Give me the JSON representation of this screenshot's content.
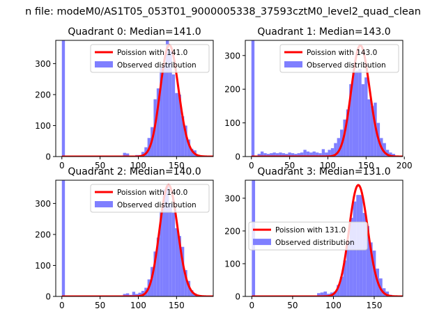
{
  "figure": {
    "suptitle": "n file: modeM0/AS1T05_053T01_9000005338_37593cztM0_level2_quad_clean",
    "colors": {
      "hist": "#7f7fff",
      "fit": "#ff0000",
      "frame": "#000000"
    }
  },
  "chart_data": [
    {
      "type": "bar+line",
      "title": "Quadrant 0: Median=141.0",
      "median": 141.0,
      "xlim": [
        -8,
        198
      ],
      "ylim": [
        0,
        375
      ],
      "xticks": [
        0,
        50,
        100,
        150
      ],
      "yticks": [
        0,
        100,
        200,
        300
      ],
      "legend": [
        "Poission with 141.0",
        "Observed distribution"
      ],
      "legend_position": "top-right",
      "fit_peak": 360,
      "hist_bin_width": 4,
      "hist": [
        [
          0,
          375
        ],
        [
          80,
          12
        ],
        [
          84,
          10
        ],
        [
          96,
          5
        ],
        [
          100,
          5
        ],
        [
          104,
          15
        ],
        [
          108,
          30
        ],
        [
          112,
          60
        ],
        [
          116,
          95
        ],
        [
          120,
          185
        ],
        [
          124,
          220
        ],
        [
          128,
          290
        ],
        [
          132,
          300
        ],
        [
          136,
          380
        ],
        [
          140,
          340
        ],
        [
          144,
          265
        ],
        [
          148,
          205
        ],
        [
          152,
          200
        ],
        [
          156,
          130
        ],
        [
          160,
          100
        ],
        [
          164,
          55
        ],
        [
          168,
          25
        ],
        [
          172,
          20
        ],
        [
          176,
          5
        ],
        [
          180,
          3
        ],
        [
          184,
          1
        ]
      ]
    },
    {
      "type": "bar+line",
      "title": "Quadrant 1: Median=143.0",
      "median": 143.0,
      "xlim": [
        -8,
        198
      ],
      "ylim": [
        0,
        345
      ],
      "xticks": [
        0,
        50,
        100,
        150,
        200
      ],
      "yticks": [
        0,
        100,
        200,
        300
      ],
      "legend": [
        "Poission with 143.0",
        "Observed distribution"
      ],
      "legend_position": "top-right",
      "fit_peak": 330,
      "hist_bin_width": 4,
      "hist": [
        [
          0,
          345
        ],
        [
          8,
          8
        ],
        [
          12,
          15
        ],
        [
          16,
          10
        ],
        [
          20,
          8
        ],
        [
          24,
          10
        ],
        [
          28,
          12
        ],
        [
          32,
          10
        ],
        [
          36,
          12
        ],
        [
          40,
          10
        ],
        [
          44,
          8
        ],
        [
          48,
          12
        ],
        [
          52,
          10
        ],
        [
          56,
          8
        ],
        [
          60,
          10
        ],
        [
          64,
          12
        ],
        [
          68,
          20
        ],
        [
          72,
          15
        ],
        [
          76,
          12
        ],
        [
          80,
          15
        ],
        [
          84,
          12
        ],
        [
          88,
          10
        ],
        [
          92,
          22
        ],
        [
          96,
          12
        ],
        [
          100,
          20
        ],
        [
          104,
          25
        ],
        [
          108,
          40
        ],
        [
          112,
          55
        ],
        [
          116,
          80
        ],
        [
          120,
          110
        ],
        [
          124,
          140
        ],
        [
          128,
          215
        ],
        [
          132,
          250
        ],
        [
          136,
          255
        ],
        [
          140,
          260
        ],
        [
          144,
          215
        ],
        [
          148,
          235
        ],
        [
          152,
          170
        ],
        [
          156,
          150
        ],
        [
          160,
          160
        ],
        [
          164,
          100
        ],
        [
          168,
          55
        ],
        [
          172,
          40
        ],
        [
          176,
          20
        ],
        [
          180,
          12
        ],
        [
          184,
          8
        ]
      ]
    },
    {
      "type": "bar+line",
      "title": "Quadrant 2: Median=140.0",
      "median": 140.0,
      "xlim": [
        -8,
        198
      ],
      "ylim": [
        0,
        375
      ],
      "xticks": [
        0,
        50,
        100,
        150
      ],
      "yticks": [
        0,
        100,
        200,
        300
      ],
      "legend": [
        "Poission with 140.0",
        "Observed distribution"
      ],
      "legend_position": "top-right",
      "fit_peak": 360,
      "hist_bin_width": 4,
      "hist": [
        [
          0,
          375
        ],
        [
          80,
          8
        ],
        [
          84,
          10
        ],
        [
          88,
          5
        ],
        [
          92,
          15
        ],
        [
          96,
          8
        ],
        [
          100,
          12
        ],
        [
          104,
          18
        ],
        [
          108,
          28
        ],
        [
          112,
          55
        ],
        [
          116,
          95
        ],
        [
          120,
          145
        ],
        [
          124,
          190
        ],
        [
          128,
          275
        ],
        [
          132,
          345
        ],
        [
          136,
          355
        ],
        [
          140,
          300
        ],
        [
          144,
          270
        ],
        [
          148,
          220
        ],
        [
          152,
          195
        ],
        [
          156,
          160
        ],
        [
          160,
          85
        ],
        [
          164,
          50
        ],
        [
          168,
          20
        ],
        [
          172,
          10
        ],
        [
          176,
          5
        ],
        [
          180,
          2
        ]
      ]
    },
    {
      "type": "bar+line",
      "title": "Quadrant 3: Median=131.0",
      "median": 131.0,
      "xlim": [
        -8,
        185
      ],
      "ylim": [
        0,
        355
      ],
      "xticks": [
        0,
        50,
        100,
        150
      ],
      "yticks": [
        0,
        100,
        200,
        300
      ],
      "legend": [
        "Poission with 131.0",
        "Observed distribution"
      ],
      "legend_position": "center-left",
      "fit_peak": 340,
      "hist_bin_width": 4,
      "hist": [
        [
          0,
          355
        ],
        [
          80,
          10
        ],
        [
          84,
          12
        ],
        [
          88,
          15
        ],
        [
          92,
          8
        ],
        [
          96,
          12
        ],
        [
          100,
          15
        ],
        [
          104,
          35
        ],
        [
          108,
          60
        ],
        [
          112,
          110
        ],
        [
          116,
          165
        ],
        [
          120,
          240
        ],
        [
          124,
          290
        ],
        [
          128,
          310
        ],
        [
          132,
          310
        ],
        [
          136,
          255
        ],
        [
          140,
          215
        ],
        [
          144,
          165
        ],
        [
          148,
          140
        ],
        [
          152,
          85
        ],
        [
          156,
          55
        ],
        [
          160,
          25
        ],
        [
          164,
          15
        ],
        [
          168,
          5
        ],
        [
          172,
          3
        ]
      ]
    }
  ]
}
